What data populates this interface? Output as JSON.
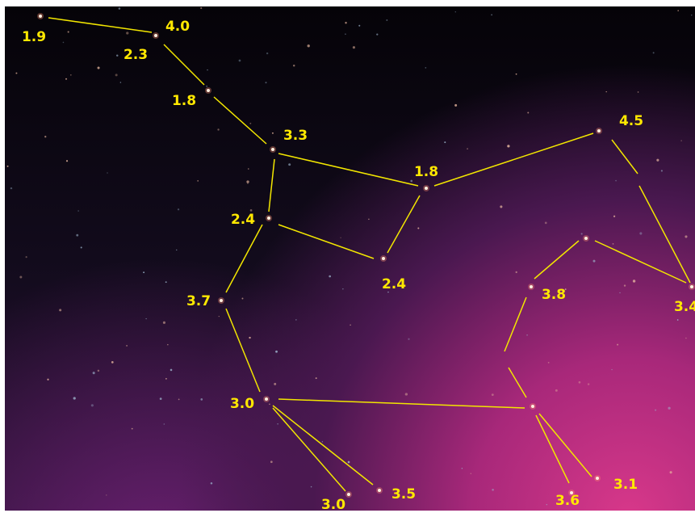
{
  "labels": [
    "1.9",
    "4.0",
    "2.3",
    "1.8",
    "3.3",
    "1.8",
    "4.5",
    "2.4",
    "2.4",
    "3.7",
    "3.8",
    "3.4",
    "3.0",
    "3.5",
    "3.0",
    "3.1",
    "3.6"
  ]
}
